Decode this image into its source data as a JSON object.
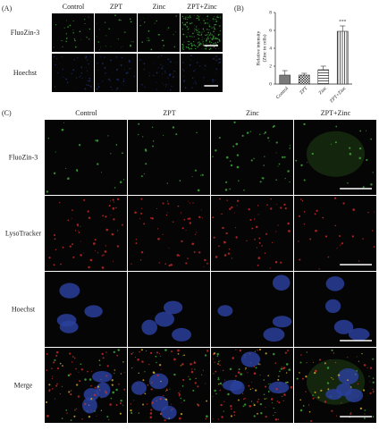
{
  "panels": {
    "a": {
      "label": "(A)",
      "columns": [
        "Control",
        "ZPT",
        "Zinc",
        "ZPT+Zinc"
      ],
      "rows": [
        "FluoZin-3",
        "Hoechst"
      ]
    },
    "c": {
      "label": "(C)",
      "columns": [
        "Control",
        "ZPT",
        "Zinc",
        "ZPT+Zinc"
      ],
      "rows": [
        "FluoZin-3",
        "LysoTracker",
        "Hoechst",
        "Merge"
      ]
    }
  },
  "chart_data": {
    "type": "bar",
    "label": "(B)",
    "ylabel": [
      "Relative intensity",
      "(Zinc in cells)"
    ],
    "categories": [
      "Control",
      "ZPT",
      "Zinc",
      "ZPT+Zinc"
    ],
    "values": [
      1.0,
      1.0,
      1.6,
      5.9
    ],
    "errors": [
      0.5,
      0.2,
      0.4,
      0.6
    ],
    "annotation": "***",
    "ylim": [
      0,
      8
    ],
    "yticks": [
      0,
      2,
      4,
      6,
      8
    ],
    "color": "#333333"
  }
}
